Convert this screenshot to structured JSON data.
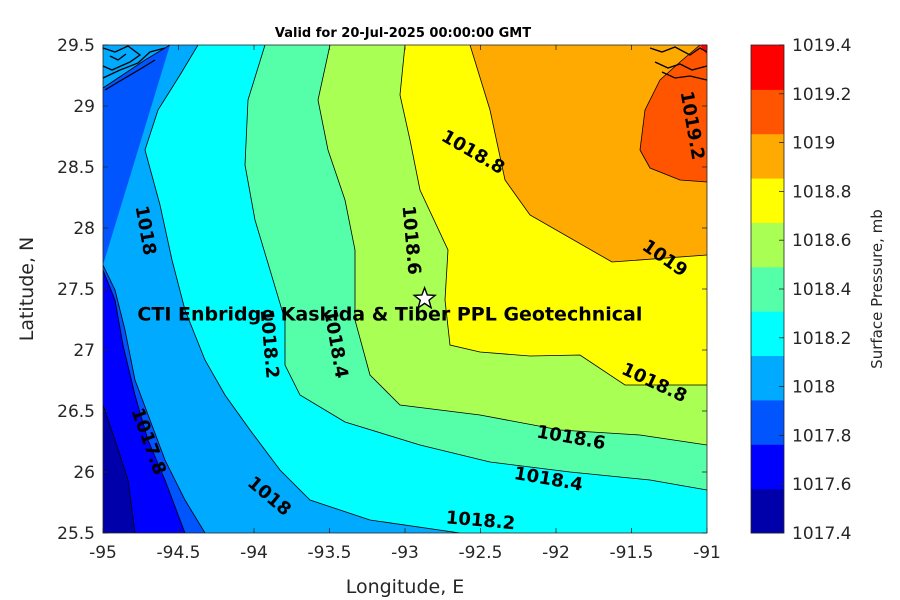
{
  "chart_data": {
    "type": "contour",
    "title": "Valid for 20-Jul-2025 00:00:00 GMT",
    "xlabel": "Longitude, E",
    "ylabel": "Latitude, N",
    "xlim": [
      -95,
      -91
    ],
    "ylim": [
      25.5,
      29.5
    ],
    "xticks": [
      "-95",
      "-94.5",
      "-94",
      "-93.5",
      "-93",
      "-92.5",
      "-92",
      "-91.5",
      "-91"
    ],
    "yticks": [
      "25.5",
      "26",
      "26.5",
      "27",
      "27.5",
      "28",
      "28.5",
      "29",
      "29.5"
    ],
    "colorbar": {
      "label": "Surface Pressure, mb",
      "levels": [
        1017.4,
        1017.6,
        1017.8,
        1018,
        1018.2,
        1018.4,
        1018.6,
        1018.8,
        1019,
        1019.2,
        1019.4
      ],
      "tick_labels": [
        "1017.4",
        "1017.6",
        "1017.8",
        "1018",
        "1018.2",
        "1018.4",
        "1018.6",
        "1018.8",
        "1019",
        "1019.2",
        "1019.4"
      ],
      "colors": [
        "#0000aa",
        "#0000ff",
        "#0055ff",
        "#00aaff",
        "#00ffff",
        "#55ffaa",
        "#aaff55",
        "#ffff00",
        "#ffaa00",
        "#ff5500",
        "#ff0000"
      ]
    },
    "contour_labels": [
      {
        "text": "1017.8",
        "lon": -94.7,
        "lat": 26.25
      },
      {
        "text": "1018",
        "lon": -94.72,
        "lat": 27.98
      },
      {
        "text": "1018",
        "lon": -93.9,
        "lat": 25.8
      },
      {
        "text": "1018.2",
        "lon": -93.9,
        "lat": 27.05
      },
      {
        "text": "1018.2",
        "lon": -92.5,
        "lat": 25.6
      },
      {
        "text": "1018.4",
        "lon": -93.46,
        "lat": 27.05
      },
      {
        "text": "1018.4",
        "lon": -92.05,
        "lat": 25.94
      },
      {
        "text": "1018.6",
        "lon": -92.96,
        "lat": 27.9
      },
      {
        "text": "1018.6",
        "lon": -91.9,
        "lat": 26.28
      },
      {
        "text": "1018.8",
        "lon": -92.55,
        "lat": 28.62
      },
      {
        "text": "1018.8",
        "lon": -91.35,
        "lat": 26.73
      },
      {
        "text": "1019",
        "lon": -91.28,
        "lat": 27.75
      },
      {
        "text": "1019.2",
        "lon": -91.1,
        "lat": 28.84
      }
    ],
    "marker": {
      "type": "star",
      "lon": -92.87,
      "lat": 27.42
    },
    "annotation": {
      "text": "CTI Enbridge  Kaskida & Tiber PPL Geotechnical",
      "lon": -93.1,
      "lat": 27.3
    }
  }
}
